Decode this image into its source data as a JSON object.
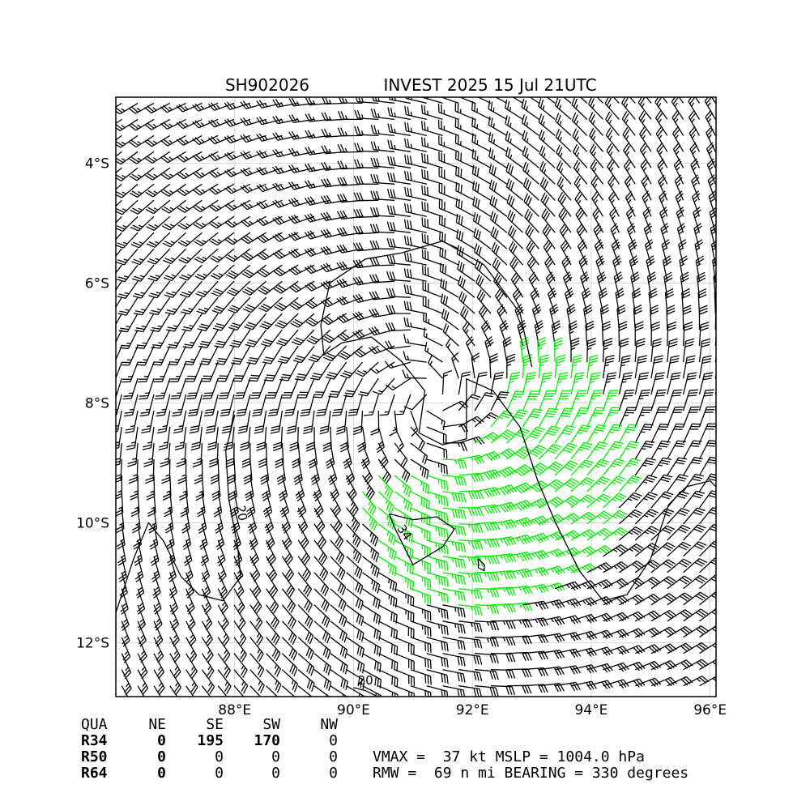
{
  "chart_data": {
    "type": "wind_barb_map",
    "title_left": "SH902026",
    "title_right": "INVEST 2025 15 Jul 21UTC",
    "lon_range": [
      86.0,
      96.1
    ],
    "lat_range": [
      -12.9,
      -2.9
    ],
    "x_ticks": [
      {
        "value": 88,
        "label": "88°E"
      },
      {
        "value": 90,
        "label": "90°E"
      },
      {
        "value": 92,
        "label": "92°E"
      },
      {
        "value": 94,
        "label": "94°E"
      },
      {
        "value": 96,
        "label": "96°E"
      }
    ],
    "y_ticks": [
      {
        "value": -4,
        "label": "4°S"
      },
      {
        "value": -6,
        "label": "6°S"
      },
      {
        "value": -8,
        "label": "8°S"
      },
      {
        "value": -10,
        "label": "10°S"
      },
      {
        "value": -12,
        "label": "12°S"
      }
    ],
    "grid": true,
    "center": {
      "lon": 91.3,
      "lat": -7.9
    },
    "barb_colors": {
      "below_34": "#000000",
      "34_to_50": "#00ee00",
      "above_50": "#ffbb00"
    },
    "contour_labels": [
      {
        "text": "20",
        "lon": 88.05,
        "lat": -9.85,
        "rotation": 80
      },
      {
        "text": "34",
        "lon": 90.8,
        "lat": -10.2,
        "rotation": 55
      },
      {
        "text": "20",
        "lon": 90.2,
        "lat": -12.7,
        "rotation": 0
      }
    ],
    "contours": {
      "c20_left": [
        [
          88.0,
          -8.2
        ],
        [
          87.85,
          -8.8
        ],
        [
          87.9,
          -9.6
        ],
        [
          88.05,
          -10.4
        ],
        [
          88.1,
          -10.9
        ],
        [
          87.8,
          -11.3
        ],
        [
          87.4,
          -11.2
        ],
        [
          87.1,
          -10.9
        ],
        [
          86.8,
          -10.3
        ],
        [
          86.55,
          -10.0
        ],
        [
          86.3,
          -10.6
        ],
        [
          86.0,
          -11.5
        ],
        [
          86.0,
          -11.9
        ]
      ],
      "c20_main": [
        [
          90.8,
          -5.5
        ],
        [
          90.2,
          -5.6
        ],
        [
          89.6,
          -6.0
        ],
        [
          89.45,
          -6.7
        ],
        [
          89.5,
          -7.2
        ],
        [
          89.8,
          -7.0
        ],
        [
          90.3,
          -6.9
        ],
        [
          90.8,
          -7.3
        ],
        [
          91.2,
          -7.8
        ],
        [
          91.1,
          -8.5
        ],
        [
          91.5,
          -8.7
        ],
        [
          91.9,
          -8.6
        ],
        [
          91.9,
          -7.6
        ],
        [
          92.35,
          -7.8
        ],
        [
          92.8,
          -8.4
        ],
        [
          93.1,
          -9.3
        ],
        [
          93.4,
          -10.0
        ],
        [
          93.8,
          -10.8
        ],
        [
          94.2,
          -11.3
        ],
        [
          94.6,
          -11.2
        ],
        [
          95.0,
          -10.6
        ],
        [
          95.3,
          -9.7
        ],
        [
          95.6,
          -9.4
        ],
        [
          96.0,
          -9.3
        ],
        [
          96.1,
          -9.4
        ]
      ],
      "c20_top": [
        [
          90.8,
          -5.5
        ],
        [
          91.5,
          -5.3
        ],
        [
          92.2,
          -5.7
        ],
        [
          92.8,
          -6.5
        ],
        [
          93.0,
          -7.4
        ]
      ],
      "c34_south": [
        [
          90.6,
          -9.85
        ],
        [
          91.0,
          -9.95
        ],
        [
          91.4,
          -9.9
        ],
        [
          91.7,
          -10.1
        ],
        [
          91.5,
          -10.4
        ],
        [
          91.0,
          -10.7
        ],
        [
          90.9,
          -10.5
        ],
        [
          90.7,
          -10.1
        ],
        [
          90.6,
          -9.85
        ]
      ],
      "c34_islet": [
        [
          92.1,
          -10.6
        ],
        [
          92.2,
          -10.7
        ],
        [
          92.2,
          -10.8
        ],
        [
          92.1,
          -10.75
        ],
        [
          92.1,
          -10.6
        ]
      ],
      "c20_bottom": [
        [
          90.4,
          -12.9
        ],
        [
          90.2,
          -12.8
        ],
        [
          90.0,
          -12.75
        ]
      ]
    }
  },
  "info_table": {
    "headers": [
      "QUA",
      "NE",
      "SE",
      "SW",
      "NW"
    ],
    "rows": [
      {
        "label": "R34",
        "values": [
          "0",
          "195",
          "170",
          "0"
        ]
      },
      {
        "label": "R50",
        "values": [
          "0",
          "0",
          "0",
          "0"
        ]
      },
      {
        "label": "R64",
        "values": [
          "0",
          "0",
          "0",
          "0"
        ]
      }
    ],
    "vmax_line": "VMAX =  37 kt MSLP = 1004.0 hPa",
    "rmw_line": "RMW =  69 n mi BEARING = 330 degrees"
  }
}
